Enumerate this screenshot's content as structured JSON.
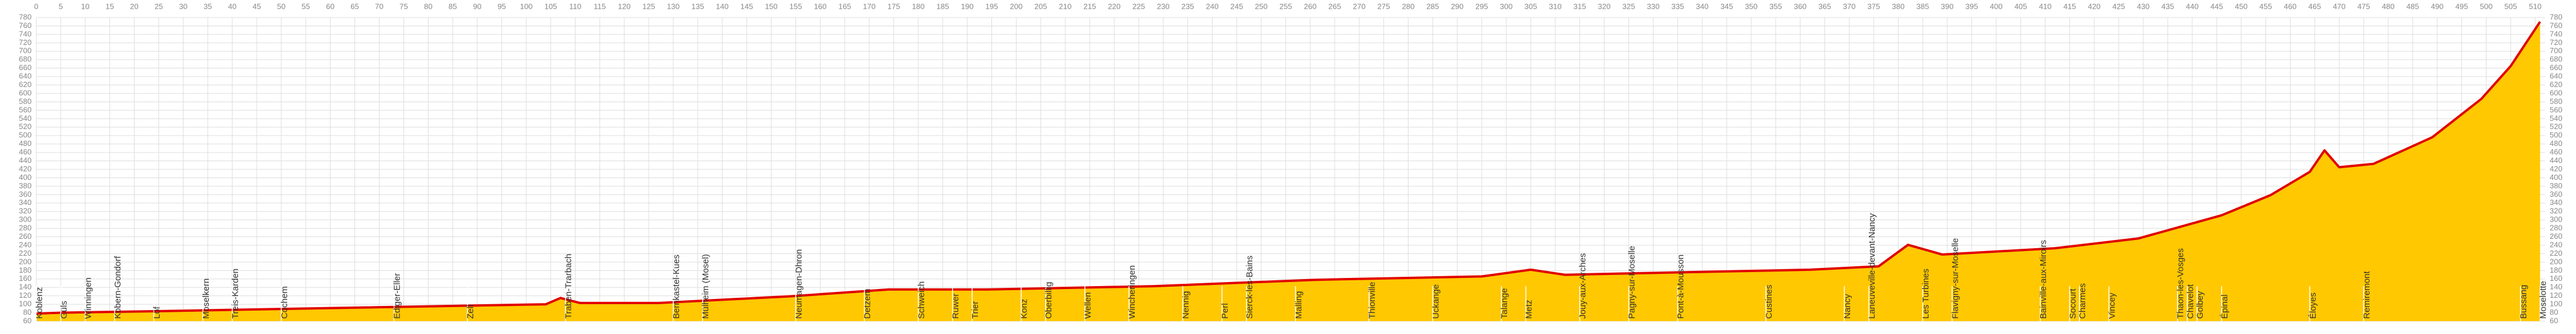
{
  "chart_data": {
    "type": "area",
    "x": [
      0,
      4.7,
      26,
      60,
      104,
      107,
      111,
      127,
      154,
      174,
      194,
      228,
      261,
      295,
      305,
      312,
      328,
      362,
      376,
      382,
      389,
      412,
      429,
      446,
      456,
      464,
      467,
      470,
      477,
      489,
      499,
      505,
      511
    ],
    "series": [
      {
        "color": "#e00000",
        "fill": "#ffc800",
        "values": [
          78,
          80,
          84,
          91,
          100,
          115,
          103,
          103,
          119,
          135,
          135,
          143,
          158,
          166,
          182,
          170,
          174,
          182,
          190,
          241,
          218,
          233,
          256,
          311,
          359,
          414,
          465,
          425,
          433,
          496,
          587,
          665,
          770
        ]
      }
    ],
    "xlim": [
      0,
      512
    ],
    "xticks": [
      0,
      5,
      10,
      15,
      20,
      25,
      30,
      35,
      40,
      45,
      50,
      55,
      60,
      65,
      70,
      75,
      80,
      85,
      90,
      95,
      100,
      105,
      110,
      115,
      120,
      125,
      130,
      135,
      140,
      145,
      150,
      155,
      160,
      165,
      170,
      175,
      180,
      185,
      190,
      195,
      200,
      205,
      210,
      215,
      220,
      225,
      230,
      235,
      240,
      245,
      250,
      255,
      260,
      265,
      270,
      275,
      280,
      285,
      290,
      295,
      300,
      305,
      310,
      315,
      320,
      325,
      330,
      335,
      340,
      345,
      350,
      355,
      360,
      365,
      370,
      375,
      380,
      385,
      390,
      395,
      400,
      405,
      410,
      415,
      420,
      425,
      430,
      435,
      440,
      445,
      450,
      455,
      460,
      465,
      470,
      475,
      480,
      485,
      490,
      495,
      500,
      505,
      510
    ],
    "ylim": [
      60,
      780
    ],
    "yticks": [
      60,
      80,
      100,
      120,
      140,
      160,
      180,
      200,
      220,
      240,
      260,
      280,
      300,
      320,
      340,
      360,
      380,
      400,
      420,
      440,
      460,
      480,
      500,
      520,
      540,
      560,
      580,
      600,
      620,
      640,
      660,
      680,
      700,
      720,
      740,
      760,
      780
    ],
    "grid": true,
    "places": [
      {
        "name": "Koblenz",
        "x": 0
      },
      {
        "name": "Güls",
        "x": 5
      },
      {
        "name": "Winningen",
        "x": 10
      },
      {
        "name": "Kobern-Gondorf",
        "x": 16
      },
      {
        "name": "Löf",
        "x": 24
      },
      {
        "name": "Moselkern",
        "x": 34
      },
      {
        "name": "Treis-Karden",
        "x": 40
      },
      {
        "name": "Cochem",
        "x": 50
      },
      {
        "name": "Ediger-Eller",
        "x": 73
      },
      {
        "name": "Zell",
        "x": 88
      },
      {
        "name": "Traben-Trarbach",
        "x": 108
      },
      {
        "name": "Bernkastel-Kues",
        "x": 130
      },
      {
        "name": "Mülheim (Mosel)",
        "x": 136
      },
      {
        "name": "Neumagen-Dhron",
        "x": 155
      },
      {
        "name": "Detzem",
        "x": 169
      },
      {
        "name": "Schweich",
        "x": 180
      },
      {
        "name": "Ruwer",
        "x": 187
      },
      {
        "name": "Trier",
        "x": 191
      },
      {
        "name": "Konz",
        "x": 201
      },
      {
        "name": "Oberbillig",
        "x": 206
      },
      {
        "name": "Wellen",
        "x": 214
      },
      {
        "name": "Wincheringen",
        "x": 223
      },
      {
        "name": "Nennig",
        "x": 234
      },
      {
        "name": "Perl",
        "x": 242
      },
      {
        "name": "Sierck-les-Bains",
        "x": 247
      },
      {
        "name": "Malling",
        "x": 257
      },
      {
        "name": "Thionville",
        "x": 272
      },
      {
        "name": "Uckange",
        "x": 285
      },
      {
        "name": "Talange",
        "x": 299
      },
      {
        "name": "Metz",
        "x": 304
      },
      {
        "name": "Jouy-aux-Arches",
        "x": 315
      },
      {
        "name": "Pagny-sur-Moselle",
        "x": 325
      },
      {
        "name": "Pont-à-Mousson",
        "x": 335
      },
      {
        "name": "Custines",
        "x": 353
      },
      {
        "name": "Nancy",
        "x": 369
      },
      {
        "name": "Laneuveville-devant-Nancy",
        "x": 374
      },
      {
        "name": "Les Turbines",
        "x": 385
      },
      {
        "name": "Flavigny-sur-Moselle",
        "x": 391
      },
      {
        "name": "Bainville-aux-Miroirs",
        "x": 409
      },
      {
        "name": "Socourt",
        "x": 415
      },
      {
        "name": "Charmes",
        "x": 417
      },
      {
        "name": "Vincey",
        "x": 423
      },
      {
        "name": "Thaon-les-Vosges",
        "x": 437
      },
      {
        "name": "Chavelot",
        "x": 439
      },
      {
        "name": "Golbey",
        "x": 441
      },
      {
        "name": "Épinal",
        "x": 446
      },
      {
        "name": "Éloyes",
        "x": 464
      },
      {
        "name": "Remiremont",
        "x": 475
      },
      {
        "name": "Bussang",
        "x": 507
      },
      {
        "name": "Moselotte",
        "x": 511
      }
    ]
  }
}
